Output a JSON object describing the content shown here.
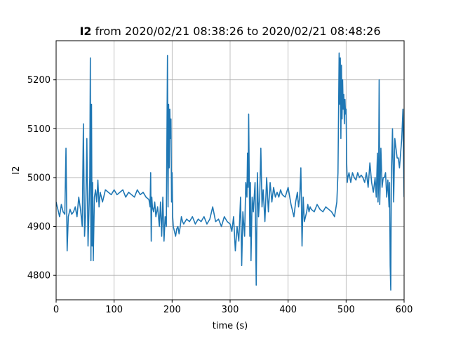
{
  "chart_data": {
    "type": "line",
    "title_bold": "I2",
    "title_rest": " from 2020/02/21 08:38:26 to 2020/02/21 08:48:26",
    "xlabel": "time (s)",
    "ylabel": "I2",
    "xlim": [
      0,
      600
    ],
    "ylim": [
      4750,
      5280
    ],
    "xticks": [
      0,
      100,
      200,
      300,
      400,
      500,
      600
    ],
    "yticks": [
      4800,
      4900,
      5000,
      5100,
      5200
    ],
    "grid": true,
    "series": [
      {
        "color": "#1f77b4",
        "x": [
          0,
          3,
          6,
          9,
          12,
          15,
          17,
          19,
          21,
          24,
          27,
          30,
          33,
          36,
          39,
          42,
          45,
          47,
          49,
          51,
          53,
          55,
          57,
          58,
          59,
          60,
          61,
          62,
          63,
          64,
          66,
          68,
          70,
          72,
          74,
          76,
          78,
          80,
          85,
          90,
          95,
          100,
          105,
          110,
          115,
          120,
          125,
          130,
          135,
          140,
          145,
          150,
          155,
          160,
          162,
          163,
          164,
          165,
          166,
          168,
          170,
          172,
          175,
          178,
          180,
          182,
          184,
          186,
          188,
          190,
          192,
          193,
          194,
          195,
          196,
          197,
          198,
          199,
          200,
          201,
          202,
          204,
          206,
          208,
          210,
          212,
          214,
          216,
          218,
          220,
          225,
          230,
          235,
          240,
          245,
          250,
          255,
          260,
          265,
          270,
          275,
          280,
          285,
          290,
          295,
          300,
          303,
          306,
          309,
          312,
          315,
          318,
          320,
          322,
          325,
          327,
          329,
          330,
          331,
          332,
          333,
          334,
          335,
          336,
          338,
          340,
          343,
          345,
          347,
          349,
          351,
          353,
          355,
          357,
          360,
          363,
          366,
          369,
          372,
          375,
          378,
          381,
          384,
          387,
          390,
          395,
          400,
          405,
          410,
          413,
          416,
          418,
          420,
          422,
          424,
          426,
          428,
          430,
          432,
          434,
          436,
          438,
          440,
          445,
          450,
          455,
          460,
          465,
          470,
          475,
          480,
          484,
          486,
          488,
          489,
          490,
          491,
          492,
          493,
          494,
          495,
          496,
          497,
          498,
          499,
          500,
          501,
          502,
          503,
          505,
          508,
          511,
          514,
          517,
          520,
          523,
          526,
          529,
          532,
          535,
          538,
          541,
          544,
          547,
          550,
          552,
          554,
          555,
          556,
          557,
          558,
          560,
          562,
          564,
          566,
          568,
          570,
          572,
          574,
          575,
          576,
          577,
          578,
          580,
          582,
          584,
          586,
          588,
          590,
          592,
          594,
          596,
          598,
          600
        ],
        "y": [
          4950,
          4935,
          4920,
          4945,
          4930,
          4925,
          5060,
          4850,
          4920,
          4935,
          4925,
          4930,
          4940,
          4920,
          4960,
          4935,
          4900,
          5110,
          4880,
          4930,
          5080,
          4860,
          4950,
          5000,
          5245,
          4830,
          5150,
          4860,
          4990,
          4830,
          4960,
          4975,
          4950,
          4995,
          4940,
          4970,
          4960,
          4950,
          4975,
          4970,
          4965,
          4975,
          4965,
          4970,
          4975,
          4960,
          4970,
          4965,
          4960,
          4975,
          4965,
          4970,
          4960,
          4955,
          4940,
          5010,
          4870,
          4960,
          4940,
          4930,
          4950,
          4920,
          4940,
          4900,
          4950,
          4880,
          4960,
          4870,
          4920,
          4900,
          5250,
          4940,
          5150,
          5020,
          5140,
          5080,
          5120,
          4950,
          5010,
          4920,
          4900,
          4890,
          4880,
          4895,
          4900,
          4885,
          4900,
          4920,
          4910,
          4905,
          4915,
          4910,
          4920,
          4905,
          4915,
          4910,
          4920,
          4905,
          4915,
          4940,
          4910,
          4915,
          4900,
          4920,
          4910,
          4905,
          4890,
          4920,
          4850,
          4900,
          4870,
          4960,
          4820,
          4930,
          4880,
          4990,
          4960,
          5050,
          4980,
          5130,
          5000,
          4880,
          4990,
          4830,
          4960,
          4930,
          4990,
          4780,
          5010,
          4920,
          4960,
          5060,
          4940,
          4975,
          4910,
          5000,
          4930,
          4990,
          4950,
          4980,
          4960,
          4970,
          4960,
          4975,
          4965,
          4960,
          4980,
          4945,
          4920,
          4950,
          4970,
          4940,
          4960,
          5020,
          4860,
          4960,
          4910,
          4920,
          4930,
          4945,
          4930,
          4940,
          4935,
          4930,
          4945,
          4935,
          4930,
          4940,
          4935,
          4930,
          4920,
          4950,
          5010,
          5255,
          5150,
          5245,
          5080,
          5230,
          5120,
          5200,
          5140,
          5170,
          5110,
          5160,
          5130,
          5140,
          5030,
          4990,
          5000,
          5010,
          4990,
          5010,
          5000,
          4995,
          5010,
          5000,
          5005,
          5000,
          4990,
          5010,
          4980,
          5030,
          4990,
          4970,
          5000,
          4960,
          5050,
          4950,
          4990,
          5200,
          4945,
          5060,
          4980,
          5000,
          5000,
          5010,
          4960,
          4995,
          4940,
          4990,
          4820,
          4770,
          5000,
          5100,
          4950,
          5080,
          5060,
          5040,
          5040,
          5020,
          5050,
          5080,
          5140,
          4960
        ]
      }
    ]
  }
}
